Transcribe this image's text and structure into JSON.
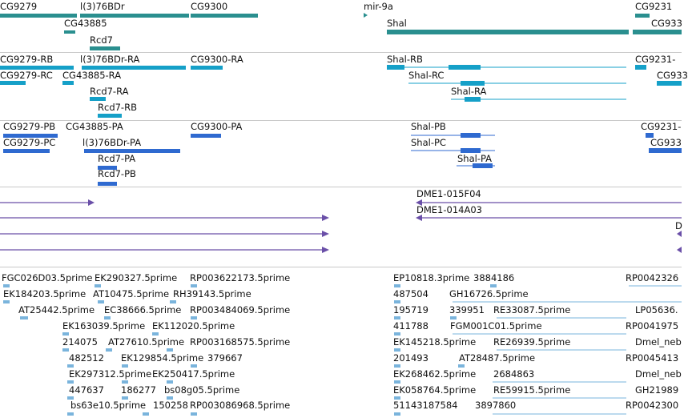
{
  "colors": {
    "gene": "#2a8f8f",
    "mrna": "#15a0c8",
    "cds": "#2f6ad0",
    "clone": "#6a4fa8",
    "est": "#7ab4dc",
    "separator": "#c9c9c9"
  },
  "tracks": {
    "genes": [
      {
        "label": "CG9279"
      },
      {
        "label": "l(3)76BDr"
      },
      {
        "label": "CG9300"
      },
      {
        "label": "mir-9a"
      },
      {
        "label": "CG9231"
      },
      {
        "label": "CG43885"
      },
      {
        "label": "Shal"
      },
      {
        "label": "CG933"
      },
      {
        "label": "Rcd7"
      }
    ],
    "transcripts": [
      {
        "label": "CG9279-RB"
      },
      {
        "label": "l(3)76BDr-RA"
      },
      {
        "label": "CG9300-RA"
      },
      {
        "label": "Shal-RB"
      },
      {
        "label": "CG9231-"
      },
      {
        "label": "CG9279-RC"
      },
      {
        "label": "CG43885-RA"
      },
      {
        "label": "Shal-RC"
      },
      {
        "label": "CG933"
      },
      {
        "label": "Rcd7-RA"
      },
      {
        "label": "Shal-RA"
      },
      {
        "label": "Rcd7-RB"
      }
    ],
    "proteins": [
      {
        "label": "CG9279-PB"
      },
      {
        "label": "CG43885-PA"
      },
      {
        "label": "CG9300-PA"
      },
      {
        "label": "Shal-PB"
      },
      {
        "label": "CG9231-"
      },
      {
        "label": "CG9279-PC"
      },
      {
        "label": "l(3)76BDr-PA"
      },
      {
        "label": "Shal-PC"
      },
      {
        "label": "CG933"
      },
      {
        "label": "Shal-PA"
      },
      {
        "label": "Rcd7-PA"
      },
      {
        "label": "Rcd7-PB"
      }
    ],
    "clones": [
      {
        "label": "DME1-015F04"
      },
      {
        "label": "DME1-014A03"
      },
      {
        "label": "D"
      }
    ],
    "ests": [
      {
        "label": "FGC026D03.5prime"
      },
      {
        "label": "EK290327.5prime"
      },
      {
        "label": "RP003622173.5prime"
      },
      {
        "label": "EP10818.3prime"
      },
      {
        "label": "3884186"
      },
      {
        "label": "RP0042326"
      },
      {
        "label": "EK184203.5prime"
      },
      {
        "label": "AT10475.5prime"
      },
      {
        "label": "RH39143.5prime"
      },
      {
        "label": "487504"
      },
      {
        "label": "GH16726.5prime"
      },
      {
        "label": "AT25442.5prime"
      },
      {
        "label": "EC38666.5prime"
      },
      {
        "label": "RP003484069.5prime"
      },
      {
        "label": "195719"
      },
      {
        "label": "339951"
      },
      {
        "label": "RE33087.5prime"
      },
      {
        "label": "LP05636."
      },
      {
        "label": "EK163039.5prime"
      },
      {
        "label": "EK112020.5prime"
      },
      {
        "label": "411788"
      },
      {
        "label": "FGM001C01.5prime"
      },
      {
        "label": "RP0041975"
      },
      {
        "label": "214075"
      },
      {
        "label": "AT27610.5prime"
      },
      {
        "label": "RP003168575.5prime"
      },
      {
        "label": "EK145218.5prime"
      },
      {
        "label": "RE26939.5prime"
      },
      {
        "label": "Dmel_neb"
      },
      {
        "label": "482512"
      },
      {
        "label": "EK129854.5prime"
      },
      {
        "label": "379667"
      },
      {
        "label": "201493"
      },
      {
        "label": "AT28487.5prime"
      },
      {
        "label": "RP0045413"
      },
      {
        "label": "EK297312.5prime"
      },
      {
        "label": "EK250417.5prime"
      },
      {
        "label": "EK268462.5prime"
      },
      {
        "label": "2684863"
      },
      {
        "label": "Dmel_neb"
      },
      {
        "label": "447637"
      },
      {
        "label": "186277"
      },
      {
        "label": "bs08g05.5prime"
      },
      {
        "label": "EK058764.5prime"
      },
      {
        "label": "RE59915.5prime"
      },
      {
        "label": "GH21989"
      },
      {
        "label": "bs63e10.5prime"
      },
      {
        "label": "150258"
      },
      {
        "label": "RP003086968.5prime"
      },
      {
        "label": "51143187584"
      },
      {
        "label": "3897860"
      },
      {
        "label": "RP0042300"
      }
    ]
  }
}
